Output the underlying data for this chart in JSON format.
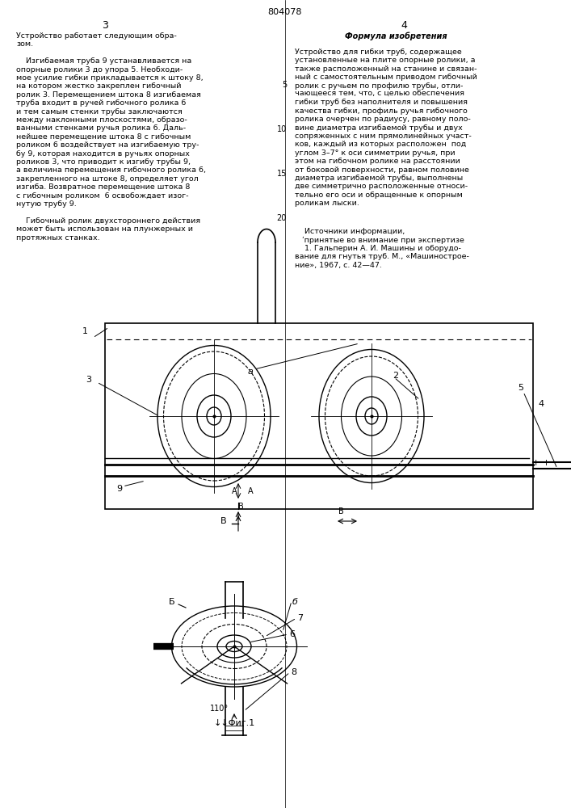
{
  "page_number_center": "804078",
  "page_number_left": "3",
  "page_number_right": "4",
  "title_left": "Устройство работает следующим обра-\nзом.",
  "bg_color": "#ffffff",
  "line_color": "#000000",
  "text_color": "#000000",
  "fig_bottom_label": "↓↓Φиг.1"
}
